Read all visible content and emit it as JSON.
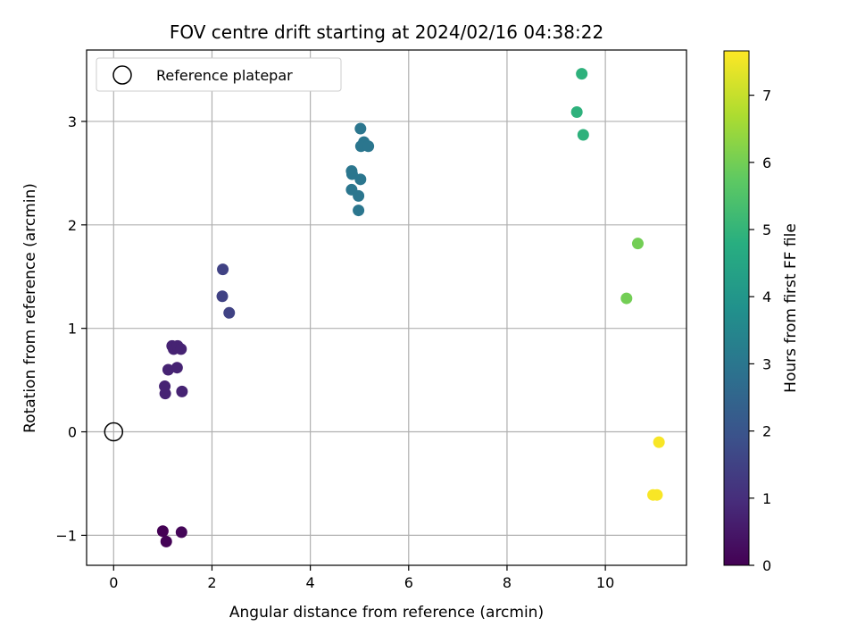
{
  "chart_data": {
    "type": "scatter",
    "title": "FOV centre drift starting at 2024/02/16 04:38:22",
    "xlabel": "Angular distance from reference (arcmin)",
    "ylabel": "Rotation from reference (arcmin)",
    "xlim": [
      -0.55,
      11.65
    ],
    "ylim": [
      -1.29,
      3.69
    ],
    "xticks": [
      0,
      2,
      4,
      6,
      8,
      10
    ],
    "xtick_labels": [
      "0",
      "2",
      "4",
      "6",
      "8",
      "10"
    ],
    "yticks": [
      -1,
      0,
      1,
      2,
      3
    ],
    "ytick_labels": [
      "−1",
      "0",
      "1",
      "2",
      "3"
    ],
    "grid": true,
    "legend": {
      "position": "top-left",
      "entries": [
        "Reference platepar"
      ]
    },
    "colorbar": {
      "label": "Hours from first FF file",
      "range": [
        0,
        7.66
      ],
      "ticks": [
        0,
        1,
        2,
        3,
        4,
        5,
        6,
        7
      ],
      "tick_labels": [
        "0",
        "1",
        "2",
        "3",
        "4",
        "5",
        "6",
        "7"
      ],
      "colormap": "viridis"
    },
    "reference_point": {
      "x": 0,
      "y": 0
    },
    "points": [
      {
        "x": 1.0,
        "y": -0.96,
        "hours": 0.0
      },
      {
        "x": 1.07,
        "y": -1.06,
        "hours": 0.05
      },
      {
        "x": 1.38,
        "y": -0.97,
        "hours": 0.1
      },
      {
        "x": 1.04,
        "y": 0.44,
        "hours": 0.75
      },
      {
        "x": 1.05,
        "y": 0.37,
        "hours": 0.75
      },
      {
        "x": 1.11,
        "y": 0.6,
        "hours": 0.75
      },
      {
        "x": 1.19,
        "y": 0.83,
        "hours": 0.75
      },
      {
        "x": 1.22,
        "y": 0.8,
        "hours": 0.75
      },
      {
        "x": 1.3,
        "y": 0.83,
        "hours": 0.75
      },
      {
        "x": 1.37,
        "y": 0.8,
        "hours": 0.75
      },
      {
        "x": 1.29,
        "y": 0.62,
        "hours": 0.75
      },
      {
        "x": 1.39,
        "y": 0.39,
        "hours": 0.75
      },
      {
        "x": 2.22,
        "y": 1.57,
        "hours": 1.5
      },
      {
        "x": 2.21,
        "y": 1.31,
        "hours": 1.5
      },
      {
        "x": 2.35,
        "y": 1.15,
        "hours": 1.5
      },
      {
        "x": 5.02,
        "y": 2.93,
        "hours": 3.0
      },
      {
        "x": 5.09,
        "y": 2.8,
        "hours": 3.0
      },
      {
        "x": 5.03,
        "y": 2.76,
        "hours": 3.0
      },
      {
        "x": 5.18,
        "y": 2.76,
        "hours": 3.0
      },
      {
        "x": 4.84,
        "y": 2.52,
        "hours": 3.0
      },
      {
        "x": 4.85,
        "y": 2.49,
        "hours": 3.0
      },
      {
        "x": 5.02,
        "y": 2.44,
        "hours": 3.0
      },
      {
        "x": 4.84,
        "y": 2.34,
        "hours": 3.0
      },
      {
        "x": 4.98,
        "y": 2.28,
        "hours": 3.0
      },
      {
        "x": 4.98,
        "y": 2.14,
        "hours": 3.0
      },
      {
        "x": 9.52,
        "y": 3.46,
        "hours": 4.9
      },
      {
        "x": 9.42,
        "y": 3.09,
        "hours": 4.9
      },
      {
        "x": 9.55,
        "y": 2.87,
        "hours": 4.9
      },
      {
        "x": 10.66,
        "y": 1.82,
        "hours": 6.0
      },
      {
        "x": 10.43,
        "y": 1.29,
        "hours": 6.0
      },
      {
        "x": 11.09,
        "y": -0.1,
        "hours": 7.6
      },
      {
        "x": 10.97,
        "y": -0.61,
        "hours": 7.6
      },
      {
        "x": 11.05,
        "y": -0.61,
        "hours": 7.6
      }
    ]
  }
}
